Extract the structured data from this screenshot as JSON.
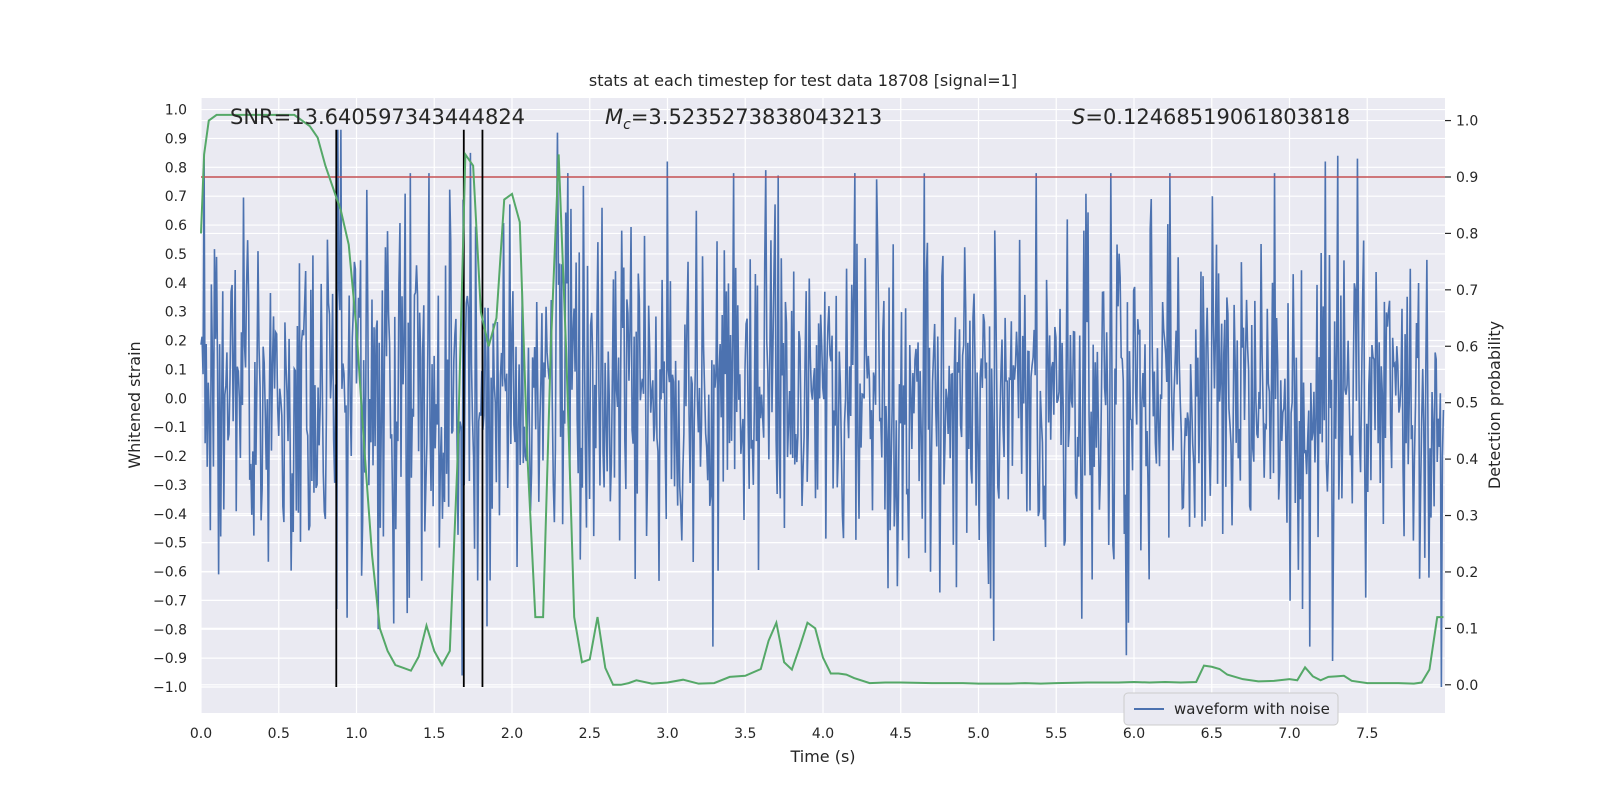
{
  "chart_data": {
    "type": "line",
    "title": "stats at each timestep for test data 18708 [signal=1]",
    "xlabel": "Time (s)",
    "ylabel": "Whitened strain",
    "y2label": "Detection probability",
    "xlim": [
      0.0,
      8.0
    ],
    "ylim": [
      -1.09,
      1.04
    ],
    "y2lim": [
      -0.05,
      1.04
    ],
    "xticks": [
      "0.0",
      "0.5",
      "1.0",
      "1.5",
      "2.0",
      "2.5",
      "3.0",
      "3.5",
      "4.0",
      "4.5",
      "5.0",
      "5.5",
      "6.0",
      "6.5",
      "7.0",
      "7.5"
    ],
    "xtick_values": [
      0.0,
      0.5,
      1.0,
      1.5,
      2.0,
      2.5,
      3.0,
      3.5,
      4.0,
      4.5,
      5.0,
      5.5,
      6.0,
      6.5,
      7.0,
      7.5
    ],
    "yticks": [
      "1.0",
      "0.9",
      "0.8",
      "0.7",
      "0.6",
      "0.5",
      "0.4",
      "0.3",
      "0.2",
      "0.1",
      "0.0",
      "−0.1",
      "−0.2",
      "−0.3",
      "−0.4",
      "−0.5",
      "−0.6",
      "−0.7",
      "−0.8",
      "−0.9",
      "−1.0"
    ],
    "ytick_values": [
      1.0,
      0.9,
      0.8,
      0.7,
      0.6,
      0.5,
      0.4,
      0.3,
      0.2,
      0.1,
      0.0,
      -0.1,
      -0.2,
      -0.3,
      -0.4,
      -0.5,
      -0.6,
      -0.7,
      -0.8,
      -0.9,
      -1.0
    ],
    "y2ticks": [
      "1.0",
      "0.9",
      "0.8",
      "0.7",
      "0.6",
      "0.5",
      "0.4",
      "0.3",
      "0.2",
      "0.1",
      "0.0"
    ],
    "y2tick_values": [
      1.0,
      0.9,
      0.8,
      0.7,
      0.6,
      0.5,
      0.4,
      0.3,
      0.2,
      0.1,
      0.0
    ],
    "annotations": {
      "snr": "SNR=13.640597343444824",
      "mc_symbol": "M",
      "mc_sub": "c",
      "mc_value": "=3.5235273838043213",
      "s_symbol": "S",
      "s_value": "=0.12468519061803818"
    },
    "legend": {
      "label": "waveform with noise",
      "placement": "lower-right"
    },
    "threshold": {
      "value": 0.9,
      "axis": "y2",
      "color": "#c44e52"
    },
    "vertical_markers": [
      0.87,
      1.69,
      1.81
    ],
    "waveform": {
      "name": "waveform with noise",
      "color": "#4c72b0",
      "t_start": 0.0,
      "t_end": 7.99,
      "n_samples": 1200,
      "typical_amplitude": 0.42,
      "peak_times": [
        0.02,
        0.88,
        0.9,
        1.73,
        2.29,
        2.58,
        3.0,
        3.63,
        6.23,
        7.23,
        7.31,
        7.44
      ],
      "peak_values": [
        0.83,
        0.93,
        0.93,
        0.85,
        0.92,
        0.66,
        0.82,
        0.79,
        0.78,
        0.82,
        0.84,
        0.83
      ],
      "trough_times": [
        0.87,
        1.14,
        1.68,
        1.84,
        3.29,
        5.1,
        5.95,
        7.13,
        7.28,
        7.98
      ],
      "trough_values": [
        -0.73,
        -0.8,
        -0.96,
        -0.79,
        -0.86,
        -0.84,
        -0.89,
        -0.86,
        -0.91,
        -1.0
      ]
    },
    "series": [
      {
        "name": "detection probability",
        "axis": "y2",
        "color": "#55a868",
        "x": [
          0.0,
          0.02,
          0.05,
          0.1,
          0.2,
          0.3,
          0.4,
          0.5,
          0.6,
          0.65,
          0.7,
          0.75,
          0.8,
          0.85,
          0.9,
          0.95,
          1.0,
          1.05,
          1.1,
          1.15,
          1.2,
          1.25,
          1.3,
          1.35,
          1.4,
          1.45,
          1.5,
          1.55,
          1.6,
          1.65,
          1.7,
          1.75,
          1.8,
          1.85,
          1.9,
          1.95,
          2.0,
          2.05,
          2.1,
          2.15,
          2.2,
          2.25,
          2.3,
          2.35,
          2.4,
          2.45,
          2.5,
          2.55,
          2.6,
          2.65,
          2.7,
          2.75,
          2.8,
          2.9,
          3.0,
          3.1,
          3.2,
          3.3,
          3.4,
          3.5,
          3.6,
          3.65,
          3.7,
          3.75,
          3.8,
          3.85,
          3.9,
          3.95,
          4.0,
          4.05,
          4.1,
          4.15,
          4.2,
          4.3,
          4.4,
          4.5,
          4.7,
          4.9,
          5.0,
          5.2,
          5.3,
          5.4,
          5.5,
          5.7,
          5.9,
          6.0,
          6.1,
          6.2,
          6.3,
          6.4,
          6.45,
          6.5,
          6.55,
          6.6,
          6.7,
          6.8,
          6.9,
          7.0,
          7.05,
          7.1,
          7.15,
          7.2,
          7.25,
          7.3,
          7.35,
          7.4,
          7.5,
          7.7,
          7.8,
          7.85,
          7.9,
          7.95,
          7.99
        ],
        "values": [
          0.8,
          0.94,
          1.0,
          1.01,
          1.01,
          1.01,
          1.01,
          1.01,
          1.01,
          1.0,
          0.99,
          0.97,
          0.92,
          0.88,
          0.84,
          0.78,
          0.63,
          0.42,
          0.23,
          0.1,
          0.06,
          0.035,
          0.03,
          0.025,
          0.05,
          0.105,
          0.06,
          0.035,
          0.06,
          0.4,
          0.94,
          0.92,
          0.66,
          0.6,
          0.65,
          0.86,
          0.87,
          0.82,
          0.4,
          0.12,
          0.12,
          0.6,
          0.94,
          0.58,
          0.12,
          0.04,
          0.045,
          0.12,
          0.03,
          0.0,
          0.0,
          0.003,
          0.008,
          0.002,
          0.004,
          0.009,
          0.002,
          0.003,
          0.014,
          0.016,
          0.028,
          0.078,
          0.11,
          0.04,
          0.027,
          0.067,
          0.11,
          0.1,
          0.048,
          0.02,
          0.02,
          0.018,
          0.012,
          0.003,
          0.004,
          0.004,
          0.003,
          0.003,
          0.002,
          0.002,
          0.003,
          0.002,
          0.003,
          0.004,
          0.004,
          0.005,
          0.004,
          0.005,
          0.004,
          0.005,
          0.034,
          0.032,
          0.028,
          0.018,
          0.01,
          0.006,
          0.007,
          0.01,
          0.008,
          0.031,
          0.015,
          0.008,
          0.014,
          0.015,
          0.016,
          0.007,
          0.003,
          0.003,
          0.002,
          0.004,
          0.027,
          0.12,
          0.12
        ]
      }
    ]
  }
}
